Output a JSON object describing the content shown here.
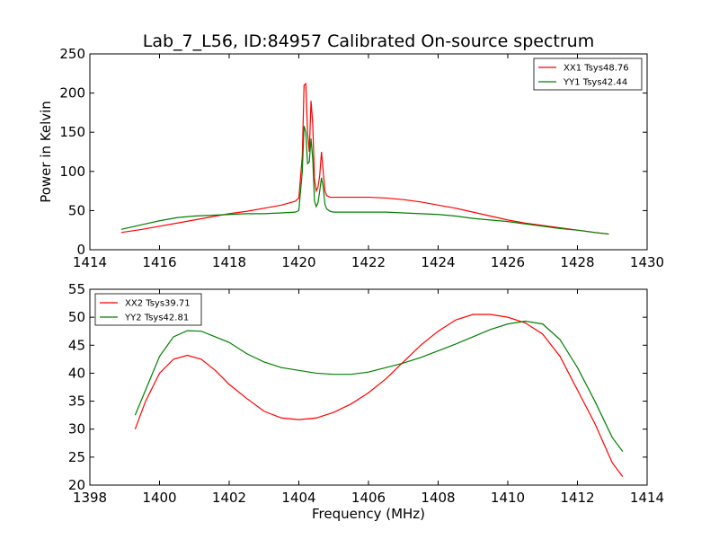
{
  "figure": {
    "title": "Lab_7_L56, ID:84957 Calibrated On-source spectrum",
    "xlabel": "Frequency (MHz)"
  },
  "chart_data": [
    {
      "type": "line",
      "title": "Lab_7_L56, ID:84957 Calibrated On-source spectrum",
      "xlabel": "",
      "ylabel": "Power in Kelvin",
      "xlim": [
        1414,
        1430
      ],
      "ylim": [
        0,
        250
      ],
      "xticks": [
        1414,
        1416,
        1418,
        1420,
        1422,
        1424,
        1426,
        1428,
        1430
      ],
      "yticks": [
        0,
        50,
        100,
        150,
        200,
        250
      ],
      "grid": false,
      "legend": "top-right",
      "series": [
        {
          "name": "XX1 Tsys48.76",
          "color": "#ff0000",
          "x": [
            1414.9,
            1415.5,
            1416.0,
            1416.5,
            1417.0,
            1417.5,
            1418.0,
            1418.5,
            1419.0,
            1419.5,
            1419.9,
            1420.0,
            1420.1,
            1420.15,
            1420.2,
            1420.25,
            1420.3,
            1420.35,
            1420.4,
            1420.45,
            1420.5,
            1420.55,
            1420.6,
            1420.65,
            1420.7,
            1420.75,
            1420.8,
            1420.9,
            1421.0,
            1421.5,
            1422.0,
            1422.5,
            1423.0,
            1423.5,
            1424.0,
            1424.5,
            1425.0,
            1425.5,
            1426.0,
            1426.5,
            1427.0,
            1427.5,
            1428.0,
            1428.5,
            1428.9
          ],
          "y": [
            22,
            26,
            30,
            34,
            38,
            42,
            46,
            49,
            53,
            57,
            62,
            66,
            120,
            210,
            212,
            150,
            125,
            190,
            160,
            90,
            75,
            80,
            95,
            125,
            100,
            75,
            69,
            67,
            67,
            67,
            67,
            66,
            64,
            61,
            57,
            53,
            48,
            43,
            38,
            34,
            31,
            28,
            25,
            22,
            20
          ]
        },
        {
          "name": "YY1 Tsys42.44",
          "color": "#008000",
          "x": [
            1414.9,
            1415.5,
            1416.0,
            1416.5,
            1417.0,
            1417.5,
            1418.0,
            1418.5,
            1419.0,
            1419.5,
            1419.9,
            1420.0,
            1420.1,
            1420.15,
            1420.2,
            1420.25,
            1420.3,
            1420.35,
            1420.4,
            1420.45,
            1420.5,
            1420.55,
            1420.6,
            1420.65,
            1420.7,
            1420.75,
            1420.8,
            1420.9,
            1421.0,
            1421.5,
            1422.0,
            1422.5,
            1423.0,
            1423.5,
            1424.0,
            1424.5,
            1425.0,
            1425.5,
            1426.0,
            1426.5,
            1427.0,
            1427.5,
            1428.0,
            1428.5,
            1428.9
          ],
          "y": [
            26,
            32,
            37,
            41,
            43,
            44,
            45,
            46,
            46,
            47,
            48,
            50,
            100,
            158,
            150,
            110,
            112,
            142,
            115,
            62,
            55,
            60,
            75,
            92,
            80,
            58,
            52,
            49,
            48,
            48,
            48,
            48,
            47,
            46,
            45,
            43,
            40,
            38,
            36,
            33,
            30,
            27,
            25,
            22,
            20
          ]
        }
      ]
    },
    {
      "type": "line",
      "title": "",
      "xlabel": "Frequency (MHz)",
      "ylabel": "",
      "xlim": [
        1398,
        1414
      ],
      "ylim": [
        20,
        55
      ],
      "xticks": [
        1398,
        1400,
        1402,
        1404,
        1406,
        1408,
        1410,
        1412,
        1414
      ],
      "yticks": [
        20,
        25,
        30,
        35,
        40,
        45,
        50,
        55
      ],
      "grid": false,
      "legend": "top-left",
      "series": [
        {
          "name": "XX2 Tsys39.71",
          "color": "#ff0000",
          "x": [
            1399.3,
            1399.6,
            1400.0,
            1400.4,
            1400.8,
            1401.2,
            1401.6,
            1402.0,
            1402.5,
            1403.0,
            1403.5,
            1404.0,
            1404.5,
            1405.0,
            1405.5,
            1406.0,
            1406.5,
            1407.0,
            1407.5,
            1408.0,
            1408.5,
            1409.0,
            1409.5,
            1410.0,
            1410.5,
            1411.0,
            1411.5,
            1412.0,
            1412.5,
            1413.0,
            1413.3
          ],
          "y": [
            30,
            35,
            40,
            42.5,
            43.2,
            42.5,
            40.5,
            38,
            35.5,
            33.2,
            32,
            31.7,
            32,
            33,
            34.5,
            36.5,
            39,
            42,
            45,
            47.5,
            49.5,
            50.5,
            50.5,
            50,
            49,
            47,
            43,
            37,
            31,
            24,
            21.5
          ]
        },
        {
          "name": "YY2 Tsys42.81",
          "color": "#008000",
          "x": [
            1399.3,
            1399.6,
            1400.0,
            1400.4,
            1400.8,
            1401.2,
            1401.6,
            1402.0,
            1402.5,
            1403.0,
            1403.5,
            1404.0,
            1404.5,
            1405.0,
            1405.5,
            1406.0,
            1406.5,
            1407.0,
            1407.5,
            1408.0,
            1408.5,
            1409.0,
            1409.5,
            1410.0,
            1410.5,
            1411.0,
            1411.5,
            1412.0,
            1412.5,
            1413.0,
            1413.3
          ],
          "y": [
            32.5,
            37,
            43,
            46.5,
            47.6,
            47.5,
            46.5,
            45.5,
            43.5,
            42,
            41,
            40.5,
            40,
            39.8,
            39.8,
            40.2,
            41,
            41.8,
            42.8,
            44,
            45.2,
            46.5,
            47.8,
            48.8,
            49.3,
            48.8,
            46,
            41,
            35,
            28.5,
            26
          ]
        }
      ]
    }
  ]
}
